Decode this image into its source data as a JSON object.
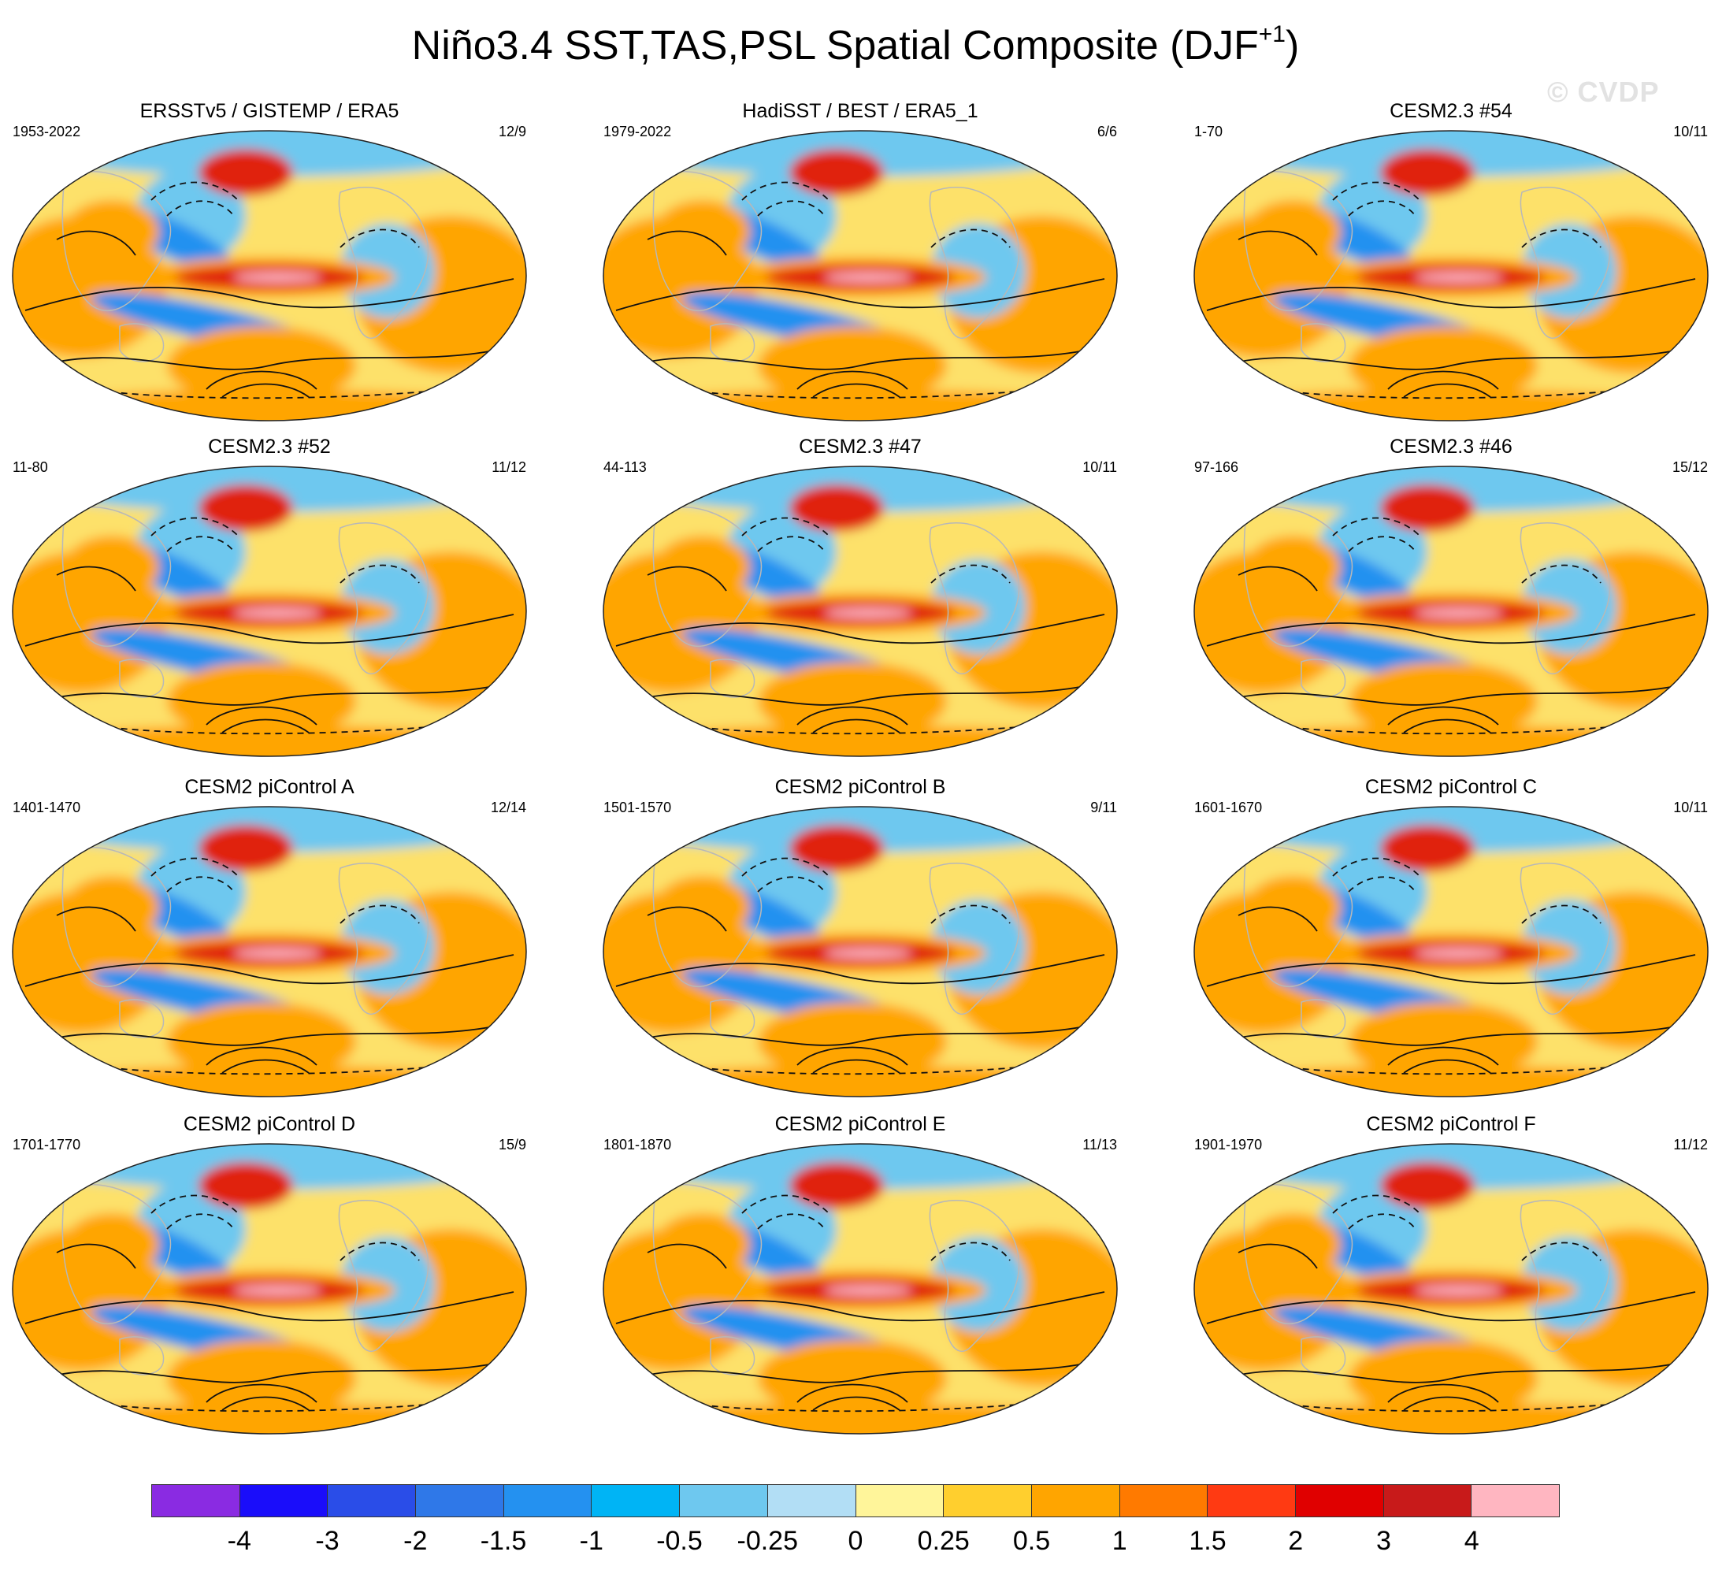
{
  "title": {
    "main": "Niño3.4 SST,TAS,PSL Spatial Composite (DJF",
    "superscript": "+1",
    "close": ")"
  },
  "watermark": "© CVDP",
  "panels": [
    {
      "title": "ERSSTv5 / GISTEMP / ERA5",
      "years": "1953-2022",
      "count": "12/9"
    },
    {
      "title": "HadiSST / BEST / ERA5_1",
      "years": "1979-2022",
      "count": "6/6"
    },
    {
      "title": "CESM2.3 #54",
      "years": "1-70",
      "count": "10/11"
    },
    {
      "title": "CESM2.3 #52",
      "years": "11-80",
      "count": "11/12"
    },
    {
      "title": "CESM2.3 #47",
      "years": "44-113",
      "count": "10/11"
    },
    {
      "title": "CESM2.3 #46",
      "years": "97-166",
      "count": "15/12"
    },
    {
      "title": "CESM2 piControl A",
      "years": "1401-1470",
      "count": "12/14"
    },
    {
      "title": "CESM2 piControl B",
      "years": "1501-1570",
      "count": "9/11"
    },
    {
      "title": "CESM2 piControl C",
      "years": "1601-1670",
      "count": "10/11"
    },
    {
      "title": "CESM2 piControl D",
      "years": "1701-1770",
      "count": "15/9"
    },
    {
      "title": "CESM2 piControl E",
      "years": "1801-1870",
      "count": "11/13"
    },
    {
      "title": "CESM2 piControl F",
      "years": "1901-1970",
      "count": "11/12"
    }
  ],
  "colorbar": {
    "colors": [
      "#8a2be2",
      "#1a0dfa",
      "#2a4de8",
      "#2f78e8",
      "#2491f0",
      "#00b4f5",
      "#6ec8ef",
      "#b2def5",
      "#fff59a",
      "#ffcf2e",
      "#ffa500",
      "#ff7a00",
      "#ff3a12",
      "#e00000",
      "#c81a1a",
      "#ffb6c1"
    ],
    "labels": [
      "-4",
      "-3",
      "-2",
      "-1.5",
      "-1",
      "-0.5",
      "-0.25",
      "0",
      "0.25",
      "0.5",
      "1",
      "1.5",
      "2",
      "3",
      "4"
    ]
  },
  "palette": {
    "ocean_bg": "#fde16a",
    "warm": "#ffa500",
    "cool": "#6ec8ef",
    "cold": "#2491f0",
    "hot": "#e02010",
    "peak": "#ffb6c1",
    "coast": "#b8b8b8"
  }
}
